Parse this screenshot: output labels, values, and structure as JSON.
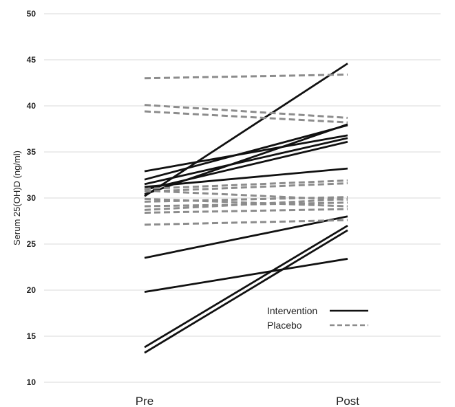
{
  "chart_data": {
    "type": "line",
    "title": "",
    "xlabel": "",
    "ylabel": "Serum 25(OH)D (ng/ml)",
    "categories": [
      "Pre",
      "Post"
    ],
    "ylim": [
      10,
      50
    ],
    "yticks": [
      "10",
      "15",
      "20",
      "25",
      "30",
      "35",
      "40",
      "45",
      "50"
    ],
    "grid": true,
    "legend_position": "bottom-right",
    "legend": [
      {
        "name": "Intervention",
        "style": "solid",
        "color": "#111111"
      },
      {
        "name": "Placebo",
        "style": "dashed",
        "color": "#8c8c8c"
      }
    ],
    "groups": [
      {
        "name": "Intervention",
        "color": "#111111",
        "dashed": false,
        "series": [
          {
            "values": [
              30.2,
              44.6
            ]
          },
          {
            "values": [
              32.9,
              36.8
            ]
          },
          {
            "values": [
              32.0,
              37.9
            ]
          },
          {
            "values": [
              31.5,
              36.5
            ]
          },
          {
            "values": [
              30.4,
              38.0
            ]
          },
          {
            "values": [
              30.9,
              36.1
            ]
          },
          {
            "values": [
              31.2,
              33.2
            ]
          },
          {
            "values": [
              23.5,
              28.0
            ]
          },
          {
            "values": [
              19.8,
              23.4
            ]
          },
          {
            "values": [
              13.8,
              27.0
            ]
          },
          {
            "values": [
              13.2,
              26.5
            ]
          }
        ]
      },
      {
        "name": "Placebo",
        "color": "#8c8c8c",
        "dashed": true,
        "series": [
          {
            "values": [
              43.0,
              43.4
            ]
          },
          {
            "values": [
              40.1,
              38.7
            ]
          },
          {
            "values": [
              39.4,
              38.2
            ]
          },
          {
            "values": [
              31.0,
              31.9
            ]
          },
          {
            "values": [
              30.7,
              31.6
            ]
          },
          {
            "values": [
              30.8,
              29.8
            ]
          },
          {
            "values": [
              29.9,
              29.1
            ]
          },
          {
            "values": [
              29.6,
              30.1
            ]
          },
          {
            "values": [
              29.1,
              29.5
            ]
          },
          {
            "values": [
              28.7,
              29.9
            ]
          },
          {
            "values": [
              28.4,
              28.8
            ]
          },
          {
            "values": [
              27.1,
              27.6
            ]
          }
        ]
      }
    ]
  }
}
